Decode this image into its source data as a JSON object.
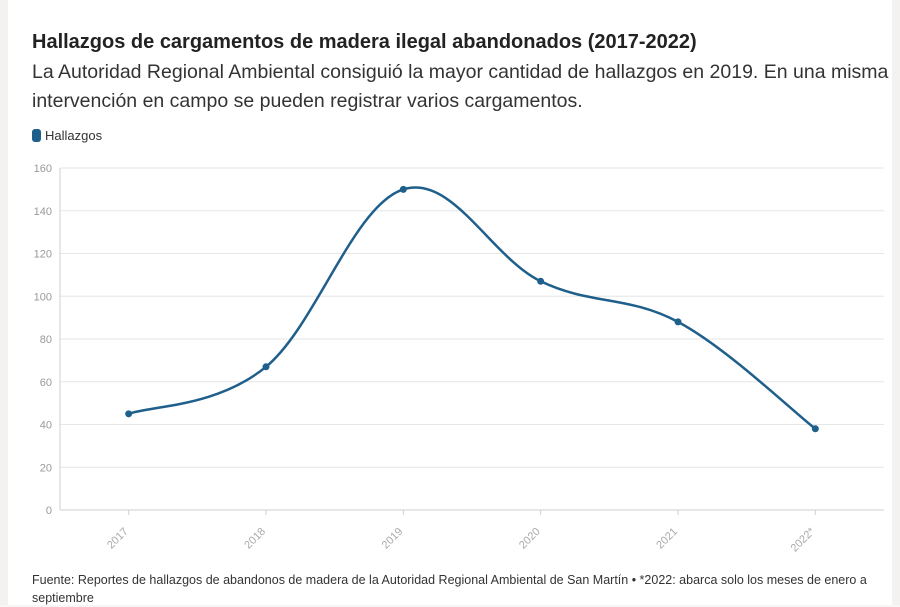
{
  "header": {
    "title": "Hallazgos de cargamentos de madera ilegal abandonados (2017-2022)",
    "subtitle": "La Autoridad Regional Ambiental consiguió la mayor cantidad de hallazgos en 2019. En una misma intervención en campo se pueden registrar varios cargamentos."
  },
  "footer": {
    "text": "Fuente: Reportes de hallazgos de abandonos de madera de la Autoridad Regional Ambiental de San Martín • *2022: abarca solo los meses de enero a septiembre"
  },
  "chart_data": {
    "type": "line",
    "title": "Hallazgos de cargamentos de madera ilegal abandonados (2017-2022)",
    "xlabel": "",
    "ylabel": "",
    "categories": [
      "2017",
      "2018",
      "2019",
      "2020",
      "2021",
      "2022*"
    ],
    "series": [
      {
        "name": "Hallazgos",
        "color": "#1f5f8b",
        "values": [
          45,
          67,
          150,
          107,
          88,
          38
        ]
      }
    ],
    "ylim": [
      0,
      160
    ],
    "yticks": [
      0,
      20,
      40,
      60,
      80,
      100,
      120,
      140,
      160
    ],
    "grid": true,
    "legend": "top-left"
  }
}
